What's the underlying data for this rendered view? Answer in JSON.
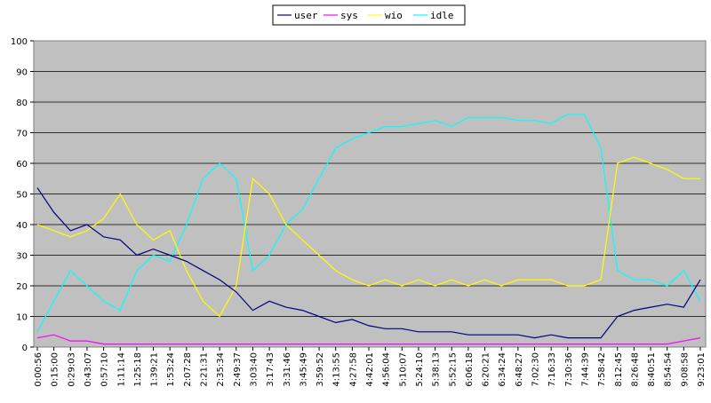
{
  "chart_data": {
    "type": "line",
    "title": "",
    "xlabel": "",
    "ylabel": "",
    "ylim": [
      0,
      100
    ],
    "yticks": [
      0,
      10,
      20,
      30,
      40,
      50,
      60,
      70,
      80,
      90,
      100
    ],
    "grid": true,
    "legend_position": "top-center",
    "plot_background": "#c0c0c0",
    "x": [
      "0:00:56",
      "0:15:00",
      "0:29:03",
      "0:43:07",
      "0:57:10",
      "1:11:14",
      "1:25:18",
      "1:39:21",
      "1:53:24",
      "2:07:28",
      "2:21:31",
      "2:35:34",
      "2:49:37",
      "3:03:40",
      "3:17:43",
      "3:31:46",
      "3:45:49",
      "3:59:52",
      "4:13:55",
      "4:27:58",
      "4:42:01",
      "4:56:04",
      "5:10:07",
      "5:24:10",
      "5:38:13",
      "5:52:15",
      "6:06:18",
      "6:20:21",
      "6:34:24",
      "6:48:27",
      "7:02:30",
      "7:16:33",
      "7:30:36",
      "7:44:39",
      "7:58:42",
      "8:12:45",
      "8:26:48",
      "8:40:51",
      "8:54:54",
      "9:08:58",
      "9:23:01"
    ],
    "series": [
      {
        "name": "user",
        "color": "#000080",
        "values": [
          52,
          44,
          38,
          40,
          36,
          35,
          30,
          32,
          30,
          28,
          25,
          22,
          18,
          12,
          15,
          13,
          12,
          10,
          8,
          9,
          7,
          6,
          6,
          5,
          5,
          5,
          4,
          4,
          4,
          4,
          3,
          4,
          3,
          3,
          3,
          10,
          12,
          13,
          14,
          13,
          22
        ]
      },
      {
        "name": "sys",
        "color": "#ff00ff",
        "values": [
          3,
          4,
          2,
          2,
          1,
          1,
          1,
          1,
          1,
          1,
          1,
          1,
          1,
          1,
          1,
          1,
          1,
          1,
          1,
          1,
          1,
          1,
          1,
          1,
          1,
          1,
          1,
          1,
          1,
          1,
          1,
          1,
          1,
          1,
          1,
          1,
          1,
          1,
          1,
          2,
          3
        ]
      },
      {
        "name": "wio",
        "color": "#ffff00",
        "values": [
          40,
          38,
          36,
          38,
          42,
          50,
          40,
          35,
          38,
          25,
          15,
          10,
          20,
          55,
          50,
          40,
          35,
          30,
          25,
          22,
          20,
          22,
          20,
          22,
          20,
          22,
          20,
          22,
          20,
          22,
          22,
          22,
          20,
          20,
          22,
          60,
          62,
          60,
          58,
          55,
          55
        ]
      },
      {
        "name": "idle",
        "color": "#00ffff",
        "values": [
          5,
          15,
          25,
          20,
          15,
          12,
          25,
          30,
          28,
          40,
          55,
          60,
          55,
          25,
          30,
          40,
          45,
          55,
          65,
          68,
          70,
          72,
          72,
          73,
          74,
          72,
          75,
          75,
          75,
          74,
          74,
          73,
          76,
          76,
          65,
          25,
          22,
          22,
          20,
          25,
          15
        ]
      }
    ]
  }
}
